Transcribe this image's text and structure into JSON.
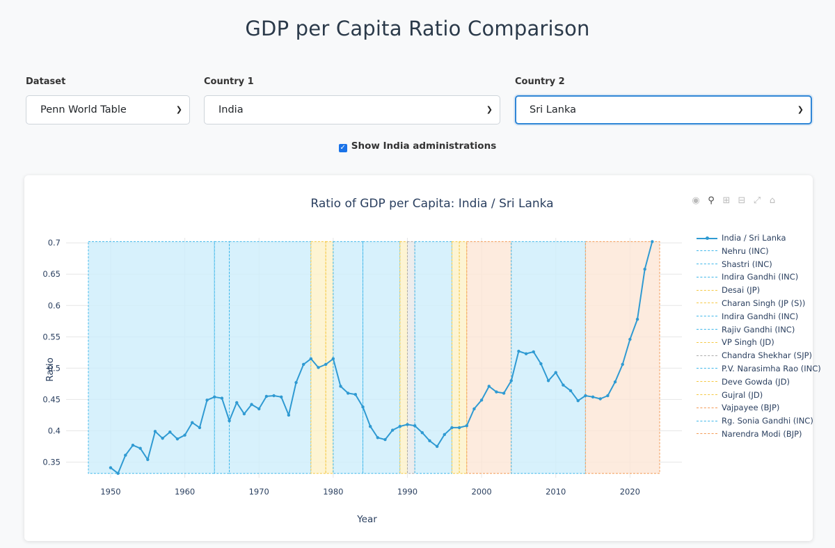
{
  "page": {
    "title": "GDP per Capita Ratio Comparison"
  },
  "controls": {
    "dataset": {
      "label": "Dataset",
      "value": "Penn World Table"
    },
    "country1": {
      "label": "Country 1",
      "value": "India"
    },
    "country2": {
      "label": "Country 2",
      "value": "Sri Lanka"
    },
    "show_admins": {
      "label": "Show India administrations",
      "checked": true
    }
  },
  "modebar": [
    "camera-icon",
    "zoom-icon",
    "zoom-in-icon",
    "zoom-out-icon",
    "autoscale-icon",
    "home-icon"
  ],
  "colors": {
    "line": "#2f9ad2",
    "INC": "#cdeefb",
    "INC_border": "#3fb7ea",
    "JANATA": "#fdf1c8",
    "JANATA_border": "#f5c842",
    "SJP": "#e8e8e8",
    "SJP_border": "#aaaaaa",
    "BJP": "#fde6d6",
    "BJP_border": "#f39a55"
  },
  "chart_data": {
    "type": "line",
    "title": "Ratio of GDP per Capita: India / Sri Lanka",
    "xlabel": "Year",
    "ylabel": "Ratio",
    "xlim": [
      1944,
      2027
    ],
    "ylim": [
      0.325,
      0.708
    ],
    "xticks": [
      1950,
      1960,
      1970,
      1980,
      1990,
      2000,
      2010,
      2020
    ],
    "yticks": [
      0.35,
      0.4,
      0.45,
      0.5,
      0.55,
      0.6,
      0.65,
      0.7
    ],
    "ytick_labels": [
      "0.35",
      "0.4",
      "0.45",
      "0.5",
      "0.55",
      "0.6",
      "0.65",
      "0.7"
    ],
    "grid": true,
    "legend_position": "right",
    "series": [
      {
        "name": "India / Sri Lanka",
        "x": [
          1950,
          1951,
          1952,
          1953,
          1954,
          1955,
          1956,
          1957,
          1958,
          1959,
          1960,
          1961,
          1962,
          1963,
          1964,
          1965,
          1966,
          1967,
          1968,
          1969,
          1970,
          1971,
          1972,
          1973,
          1974,
          1975,
          1976,
          1977,
          1978,
          1979,
          1980,
          1981,
          1982,
          1983,
          1984,
          1985,
          1986,
          1987,
          1988,
          1989,
          1990,
          1991,
          1992,
          1993,
          1994,
          1995,
          1996,
          1997,
          1998,
          1999,
          2000,
          2001,
          2002,
          2003,
          2004,
          2005,
          2006,
          2007,
          2008,
          2009,
          2010,
          2011,
          2012,
          2013,
          2014,
          2015,
          2016,
          2017,
          2018,
          2019,
          2020,
          2021,
          2022,
          2023
        ],
        "y": [
          0.341,
          0.332,
          0.361,
          0.377,
          0.372,
          0.354,
          0.399,
          0.388,
          0.398,
          0.387,
          0.393,
          0.413,
          0.405,
          0.449,
          0.454,
          0.452,
          0.416,
          0.445,
          0.427,
          0.442,
          0.435,
          0.455,
          0.456,
          0.454,
          0.425,
          0.477,
          0.506,
          0.515,
          0.501,
          0.506,
          0.515,
          0.471,
          0.46,
          0.458,
          0.438,
          0.407,
          0.389,
          0.386,
          0.401,
          0.407,
          0.41,
          0.408,
          0.397,
          0.384,
          0.375,
          0.394,
          0.405,
          0.405,
          0.408,
          0.435,
          0.449,
          0.471,
          0.462,
          0.46,
          0.48,
          0.527,
          0.523,
          0.526,
          0.507,
          0.48,
          0.493,
          0.473,
          0.464,
          0.448,
          0.456,
          0.454,
          0.451,
          0.456,
          0.478,
          0.506,
          0.546,
          0.578,
          0.658,
          0.702
        ]
      }
    ],
    "administrations": [
      {
        "name": "Nehru (INC)",
        "party": "INC",
        "start": 1947,
        "end": 1964
      },
      {
        "name": "Shastri (INC)",
        "party": "INC",
        "start": 1964,
        "end": 1966
      },
      {
        "name": "Indira Gandhi (INC)",
        "party": "INC",
        "start": 1966,
        "end": 1977
      },
      {
        "name": "Desai (JP)",
        "party": "JANATA",
        "start": 1977,
        "end": 1979
      },
      {
        "name": "Charan Singh (JP (S))",
        "party": "JANATA",
        "start": 1979,
        "end": 1980
      },
      {
        "name": "Indira Gandhi (INC)",
        "party": "INC",
        "start": 1980,
        "end": 1984
      },
      {
        "name": "Rajiv Gandhi (INC)",
        "party": "INC",
        "start": 1984,
        "end": 1989
      },
      {
        "name": "VP Singh (JD)",
        "party": "JANATA",
        "start": 1989,
        "end": 1990
      },
      {
        "name": "Chandra Shekhar (SJP)",
        "party": "SJP",
        "start": 1990,
        "end": 1991
      },
      {
        "name": "P.V. Narasimha Rao (INC)",
        "party": "INC",
        "start": 1991,
        "end": 1996
      },
      {
        "name": "Deve Gowda (JD)",
        "party": "JANATA",
        "start": 1996,
        "end": 1997
      },
      {
        "name": "Gujral (JD)",
        "party": "JANATA",
        "start": 1997,
        "end": 1998
      },
      {
        "name": "Vajpayee (BJP)",
        "party": "BJP",
        "start": 1998,
        "end": 2004
      },
      {
        "name": "Rg. Sonia Gandhi (INC)",
        "party": "INC",
        "start": 2004,
        "end": 2014
      },
      {
        "name": "Narendra Modi (BJP)",
        "party": "BJP",
        "start": 2014,
        "end": 2024
      }
    ]
  }
}
